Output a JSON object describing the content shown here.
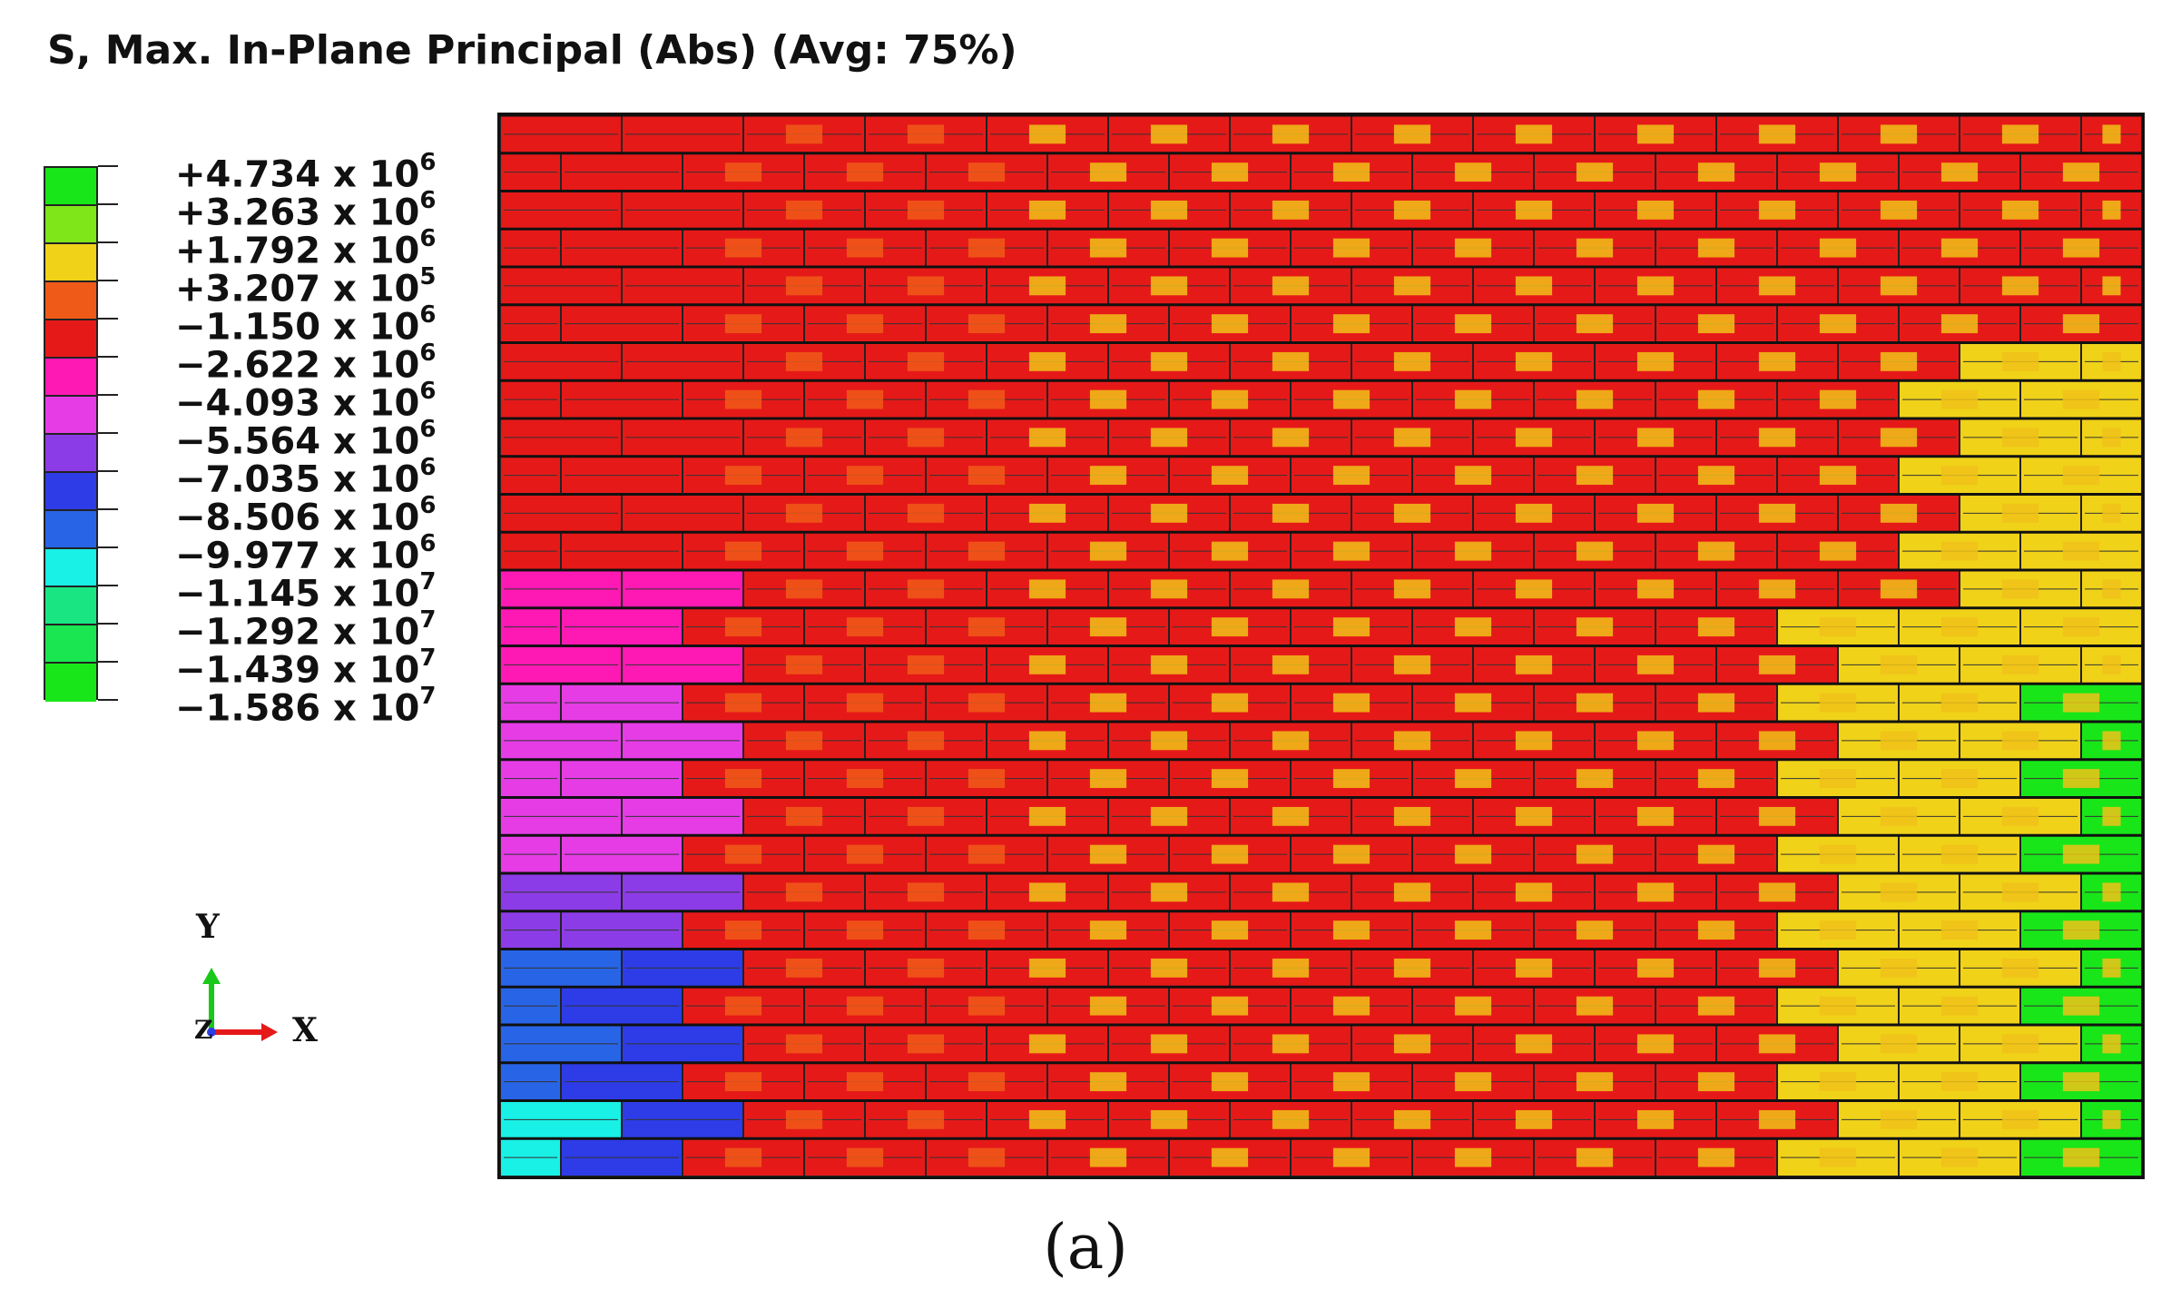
{
  "title": "S, Max. In-Plane Principal (Abs) (Avg: 75%)",
  "legend": {
    "colors": [
      "#19e619",
      "#7fe619",
      "#f0d219",
      "#f05a19",
      "#e61919",
      "#ff19b4",
      "#e63ce6",
      "#8c3ce6",
      "#2d3ce6",
      "#2864e6",
      "#19f0e6",
      "#19e682",
      "#19e650",
      "#19e619"
    ],
    "labels": [
      {
        "mantissa": "+4.734 x 10",
        "exp": "6"
      },
      {
        "mantissa": "+3.263 x 10",
        "exp": "6"
      },
      {
        "mantissa": "+1.792 x 10",
        "exp": "6"
      },
      {
        "mantissa": "+3.207 x 10",
        "exp": "5"
      },
      {
        "mantissa": "−1.150 x 10",
        "exp": "6"
      },
      {
        "mantissa": "−2.622 x 10",
        "exp": "6"
      },
      {
        "mantissa": "−4.093 x 10",
        "exp": "6"
      },
      {
        "mantissa": "−5.564 x 10",
        "exp": "6"
      },
      {
        "mantissa": "−7.035 x 10",
        "exp": "6"
      },
      {
        "mantissa": "−8.506 x 10",
        "exp": "6"
      },
      {
        "mantissa": "−9.977 x 10",
        "exp": "6"
      },
      {
        "mantissa": "−1.145 x 10",
        "exp": "7"
      },
      {
        "mantissa": "−1.292 x 10",
        "exp": "7"
      },
      {
        "mantissa": "−1.439 x 10",
        "exp": "7"
      },
      {
        "mantissa": "−1.586 x 10",
        "exp": "7"
      }
    ]
  },
  "triad": {
    "y": "Y",
    "x": "X",
    "z": "Z"
  },
  "caption": "(a)"
}
